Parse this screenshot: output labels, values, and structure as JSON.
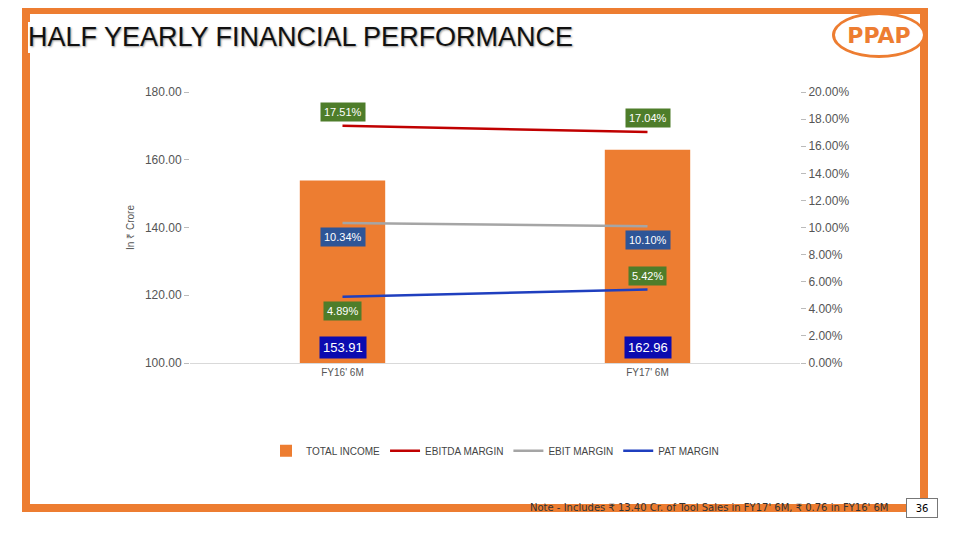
{
  "chart_data": {
    "type": "bar",
    "title": "HALF YEARLY FINANCIAL PERFORMANCE",
    "y_label": "In ₹ Crore",
    "categories": [
      "FY16' 6M",
      "FY17' 6M"
    ],
    "series": [
      {
        "name": "TOTAL INCOME",
        "type": "bar",
        "color": "#ed7d31",
        "values": [
          153.91,
          162.96
        ]
      },
      {
        "name": "EBITDA MARGIN",
        "type": "line",
        "axis": "y2",
        "color": "#c00000",
        "values": [
          17.51,
          17.04
        ],
        "value_labels": [
          "17.51%",
          "17.04%"
        ]
      },
      {
        "name": "EBIT MARGIN",
        "type": "line",
        "axis": "y2",
        "color": "#a5a5a5",
        "values": [
          10.34,
          10.1
        ],
        "value_labels": [
          "10.34%",
          "10.10%"
        ]
      },
      {
        "name": "PAT MARGIN",
        "type": "line",
        "axis": "y2",
        "color": "#1f3fbf",
        "values": [
          4.89,
          5.42
        ],
        "value_labels": [
          "4.89%",
          "5.42%"
        ]
      }
    ],
    "ylim": [
      100,
      180
    ],
    "yticks": [
      {
        "value": 100,
        "label": "100.00"
      },
      {
        "value": 120,
        "label": "120.00"
      },
      {
        "value": 140,
        "label": "140.00"
      },
      {
        "value": 160,
        "label": "160.00"
      },
      {
        "value": 180,
        "label": "180.00"
      }
    ],
    "y2lim": [
      0,
      20
    ],
    "y2ticks": [
      {
        "value": 0,
        "label": "0.00%"
      },
      {
        "value": 2,
        "label": "2.00%"
      },
      {
        "value": 4,
        "label": "4.00%"
      },
      {
        "value": 6,
        "label": "6.00%"
      },
      {
        "value": 8,
        "label": "8.00%"
      },
      {
        "value": 10,
        "label": "10.00%"
      },
      {
        "value": 12,
        "label": "12.00%"
      },
      {
        "value": 14,
        "label": "14.00%"
      },
      {
        "value": 16,
        "label": "16.00%"
      },
      {
        "value": 18,
        "label": "18.00%"
      },
      {
        "value": 20,
        "label": "20.00%"
      }
    ],
    "grid": false,
    "legend": "bottom",
    "data_labels": true
  },
  "note": "Note - Includes ₹ 13.40 Cr. of Tool Sales in FY17' 6M, ₹ 0.76 in FY16' 6M",
  "page_number": "36",
  "logo": "PPAP"
}
